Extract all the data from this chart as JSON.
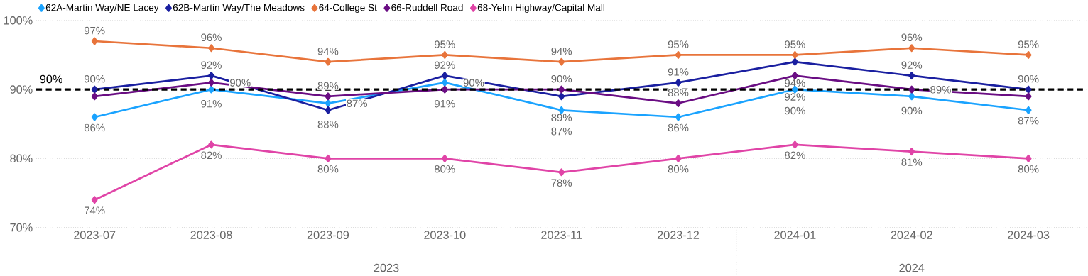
{
  "chart_data": {
    "type": "line",
    "categories": [
      "2023-07",
      "2023-08",
      "2023-09",
      "2023-10",
      "2023-11",
      "2023-12",
      "2024-01",
      "2024-02",
      "2024-03"
    ],
    "series": [
      {
        "name": "62A-Martin Way/NE Lacey",
        "color": "#1aa3ff",
        "values": [
          86,
          90,
          88,
          91,
          87,
          86,
          90,
          89,
          87
        ],
        "value_labels": [
          "86%",
          "90%",
          "88%",
          "91%",
          "87%",
          "86%",
          "90%",
          "89%",
          "87%"
        ]
      },
      {
        "name": "62B-Martin Way/The Meadows",
        "color": "#1a1fa0",
        "values": [
          90,
          92,
          87,
          92,
          89,
          91,
          94,
          92,
          90
        ],
        "value_labels": [
          "90%",
          "92%",
          "87%",
          "92%",
          "89%",
          "91%",
          "94%",
          "92%",
          "90%"
        ]
      },
      {
        "name": "64-College St",
        "color": "#e8743b",
        "values": [
          97,
          96,
          94,
          95,
          94,
          95,
          95,
          96,
          95
        ],
        "value_labels": [
          "97%",
          "96%",
          "94%",
          "95%",
          "94%",
          "95%",
          "95%",
          "96%",
          "95%"
        ]
      },
      {
        "name": "66-Ruddell Road",
        "color": "#6a0d83",
        "values": [
          89,
          91,
          89,
          90,
          90,
          88,
          92,
          90,
          89
        ],
        "value_labels": [
          null,
          "91%",
          "89%",
          "90%",
          "90%",
          "88%",
          "92%",
          "90%",
          null
        ]
      },
      {
        "name": "68-Yelm Highway/Capital Mall",
        "color": "#e044a7",
        "values": [
          74,
          82,
          80,
          80,
          78,
          80,
          82,
          81,
          80
        ],
        "value_labels": [
          "74%",
          "82%",
          "80%",
          "80%",
          "78%",
          "80%",
          "82%",
          "81%",
          "80%"
        ]
      }
    ],
    "ylim": [
      70,
      100
    ],
    "yticks": [
      {
        "value": 70,
        "label": "70%"
      },
      {
        "value": 80,
        "label": "80%"
      },
      {
        "value": 90,
        "label": "90%"
      },
      {
        "value": 100,
        "label": "100%"
      }
    ],
    "ref_lines": [
      {
        "axis": "y",
        "value": 90,
        "label": "90%",
        "color": "#000000",
        "line_style": "dashed"
      }
    ],
    "annotations": [
      "2023",
      "2024"
    ],
    "grid": "y",
    "legend": "top left",
    "marker": "diamond"
  }
}
